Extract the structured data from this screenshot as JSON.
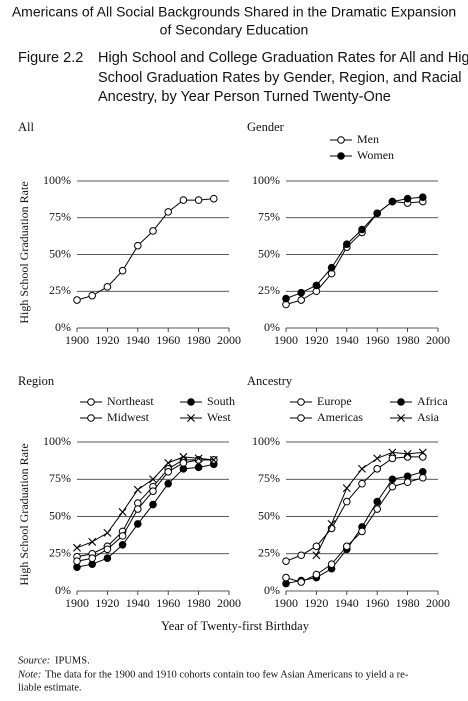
{
  "header": {
    "title_lines": [
      "Americans of All Social Backgrounds Shared in the Dramatic Expansion",
      "of Secondary Education"
    ],
    "figure_label": "Figure 2.2",
    "figure_caption_lines": [
      "High School and College Graduation Rates for All and High",
      "School Graduation Rates by Gender, Region, and Racial",
      "Ancestry, by Year Person Turned Twenty-One"
    ]
  },
  "xlabel": "Year of Twenty-first Birthday",
  "chart_data": [
    {
      "type": "line",
      "title": "All",
      "ylabel": "High School Graduation Rate",
      "x": [
        1900,
        1910,
        1920,
        1930,
        1940,
        1950,
        1960,
        1970,
        1980,
        1990
      ],
      "series": [
        {
          "name": null,
          "color": "#000000",
          "marker": "open-circle",
          "values": [
            19,
            22,
            28,
            39,
            56,
            66,
            79,
            87,
            87,
            88
          ]
        }
      ],
      "xlim": [
        1900,
        2000
      ],
      "xticks": [
        1900,
        1920,
        1940,
        1960,
        1980,
        2000
      ],
      "ylim": [
        0,
        100
      ],
      "yticks": [
        {
          "value": 0,
          "label": "0%"
        },
        {
          "value": 25,
          "label": "25%"
        },
        {
          "value": 50,
          "label": "50%"
        },
        {
          "value": 75,
          "label": "75%"
        },
        {
          "value": 100,
          "label": "100%"
        }
      ],
      "grid": true
    },
    {
      "type": "line",
      "title": "Gender",
      "x": [
        1900,
        1910,
        1920,
        1930,
        1940,
        1950,
        1960,
        1970,
        1980,
        1990
      ],
      "series": [
        {
          "name": "Men",
          "color": "#000000",
          "marker": "open-circle",
          "values": [
            16,
            19,
            25,
            37,
            55,
            65,
            78,
            86,
            85,
            86
          ]
        },
        {
          "name": "Women",
          "color": "#000000",
          "marker": "filled-circle",
          "values": [
            20,
            24,
            29,
            41,
            57,
            67,
            78,
            86,
            88,
            89
          ]
        }
      ],
      "xlim": [
        1900,
        2000
      ],
      "xticks": [
        1900,
        1920,
        1940,
        1960,
        1980,
        2000
      ],
      "ylim": [
        0,
        100
      ],
      "yticks": [
        {
          "value": 0,
          "label": "0%"
        },
        {
          "value": 25,
          "label": "25%"
        },
        {
          "value": 50,
          "label": "50%"
        },
        {
          "value": 75,
          "label": "75%"
        },
        {
          "value": 100,
          "label": "100%"
        }
      ],
      "grid": true,
      "legend_columns": 1
    },
    {
      "type": "line",
      "title": "Region",
      "ylabel": "High School Graduation Rate",
      "x": [
        1900,
        1910,
        1920,
        1930,
        1940,
        1950,
        1960,
        1970,
        1980,
        1990
      ],
      "series": [
        {
          "name": "Northeast",
          "color": "#000000",
          "marker": "open-circle",
          "values": [
            23,
            25,
            30,
            40,
            59,
            70,
            82,
            88,
            88,
            88
          ]
        },
        {
          "name": "South",
          "color": "#000000",
          "marker": "filled-circle",
          "values": [
            16,
            18,
            22,
            31,
            45,
            58,
            72,
            82,
            83,
            85
          ]
        },
        {
          "name": "Midwest",
          "color": "#000000",
          "marker": "open-circle",
          "values": [
            20,
            22,
            28,
            37,
            55,
            67,
            80,
            86,
            88,
            88
          ]
        },
        {
          "name": "West",
          "color": "#000000",
          "marker": "x",
          "values": [
            29,
            33,
            39,
            53,
            68,
            75,
            86,
            90,
            89,
            88
          ]
        }
      ],
      "xlim": [
        1900,
        2000
      ],
      "xticks": [
        1900,
        1920,
        1940,
        1960,
        1980,
        2000
      ],
      "ylim": [
        0,
        100
      ],
      "yticks": [
        {
          "value": 0,
          "label": "0%"
        },
        {
          "value": 25,
          "label": "25%"
        },
        {
          "value": 50,
          "label": "50%"
        },
        {
          "value": 75,
          "label": "75%"
        },
        {
          "value": 100,
          "label": "100%"
        }
      ],
      "grid": true,
      "legend_columns": 2
    },
    {
      "type": "line",
      "title": "Ancestry",
      "x": [
        1900,
        1910,
        1920,
        1930,
        1940,
        1950,
        1960,
        1970,
        1980,
        1990
      ],
      "series": [
        {
          "name": "Europe",
          "color": "#000000",
          "marker": "open-circle",
          "values": [
            20,
            24,
            30,
            42,
            60,
            72,
            82,
            89,
            90,
            90
          ]
        },
        {
          "name": "Africa",
          "color": "#000000",
          "marker": "filled-circle",
          "values": [
            5,
            7,
            9,
            15,
            28,
            43,
            60,
            75,
            77,
            80
          ]
        },
        {
          "name": "Americas",
          "color": "#000000",
          "marker": "open-circle",
          "values": [
            9,
            6,
            11,
            18,
            30,
            40,
            55,
            70,
            73,
            76
          ]
        },
        {
          "name": "Asia",
          "color": "#000000",
          "marker": "x",
          "values": [
            null,
            null,
            24,
            45,
            69,
            82,
            89,
            93,
            92,
            93
          ]
        }
      ],
      "xlim": [
        1900,
        2000
      ],
      "xticks": [
        1900,
        1920,
        1940,
        1960,
        1980,
        2000
      ],
      "ylim": [
        0,
        100
      ],
      "yticks": [
        {
          "value": 0,
          "label": "0%"
        },
        {
          "value": 25,
          "label": "25%"
        },
        {
          "value": 50,
          "label": "50%"
        },
        {
          "value": 75,
          "label": "75%"
        },
        {
          "value": 100,
          "label": "100%"
        }
      ],
      "grid": true,
      "legend_columns": 2
    }
  ],
  "footnotes": {
    "source_label": "Source:",
    "source": "IPUMS.",
    "note_label": "Note:",
    "note_lines": [
      "The data for the 1900 and 1910 cohorts contain too few Asian Americans to yield a re-",
      "liable estimate."
    ]
  }
}
